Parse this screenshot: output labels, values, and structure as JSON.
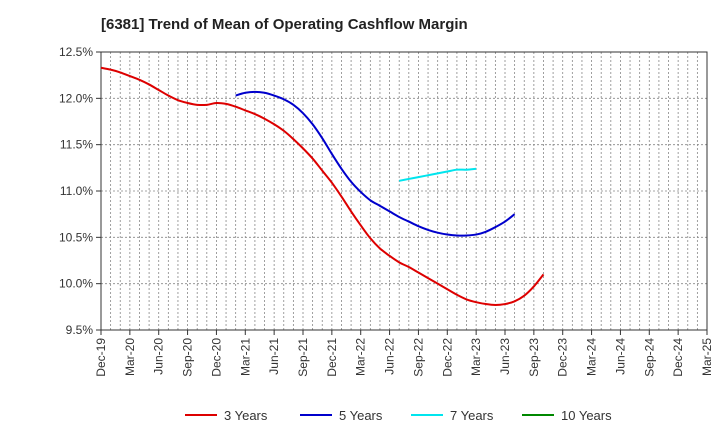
{
  "chart_data": {
    "type": "line",
    "title": "[6381]  Trend of Mean of Operating Cashflow Margin",
    "xlabel": "",
    "ylabel": "",
    "ylim": [
      9.5,
      12.5
    ],
    "y_ticks": [
      9.5,
      10.0,
      10.5,
      11.0,
      11.5,
      12.0,
      12.5
    ],
    "y_tick_labels": [
      "9.5%",
      "10.0%",
      "10.5%",
      "11.0%",
      "11.5%",
      "12.0%",
      "12.5%"
    ],
    "x_tick_labels": [
      "Dec-19",
      "Mar-20",
      "Jun-20",
      "Sep-20",
      "Dec-20",
      "Mar-21",
      "Jun-21",
      "Sep-21",
      "Dec-21",
      "Mar-22",
      "Jun-22",
      "Sep-22",
      "Dec-22",
      "Mar-23",
      "Jun-23",
      "Sep-23",
      "Dec-23",
      "Mar-24",
      "Jun-24",
      "Sep-24",
      "Dec-24",
      "Mar-25"
    ],
    "grid": true,
    "legend_position": "bottom",
    "series": [
      {
        "name": "3 Years",
        "color": "#dd0000",
        "x_start_index": 0,
        "values": [
          12.33,
          12.31,
          12.28,
          12.24,
          12.2,
          12.15,
          12.09,
          12.03,
          11.98,
          11.95,
          11.93,
          11.93,
          11.95,
          11.94,
          11.91,
          11.87,
          11.83,
          11.78,
          11.72,
          11.65,
          11.56,
          11.46,
          11.35,
          11.22,
          11.09,
          10.94,
          10.78,
          10.63,
          10.49,
          10.38,
          10.3,
          10.23,
          10.18,
          10.12,
          10.06,
          10.0,
          9.94,
          9.88,
          9.83,
          9.8,
          9.78,
          9.77,
          9.78,
          9.81,
          9.87,
          9.97,
          10.1
        ]
      },
      {
        "name": "5 Years",
        "color": "#0000cc",
        "x_start_index": 14,
        "values": [
          12.03,
          12.06,
          12.07,
          12.06,
          12.03,
          11.99,
          11.93,
          11.84,
          11.72,
          11.57,
          11.4,
          11.24,
          11.1,
          10.99,
          10.9,
          10.84,
          10.78,
          10.72,
          10.67,
          10.62,
          10.58,
          10.55,
          10.53,
          10.52,
          10.52,
          10.53,
          10.56,
          10.61,
          10.67,
          10.75
        ]
      },
      {
        "name": "7 Years",
        "color": "#00e5ee",
        "x_start_index": 31,
        "values": [
          11.11,
          11.13,
          11.15,
          11.17,
          11.19,
          11.21,
          11.23,
          11.23,
          11.24
        ]
      },
      {
        "name": "10 Years",
        "color": "#008800",
        "x_start_index": 0,
        "values": []
      }
    ]
  }
}
